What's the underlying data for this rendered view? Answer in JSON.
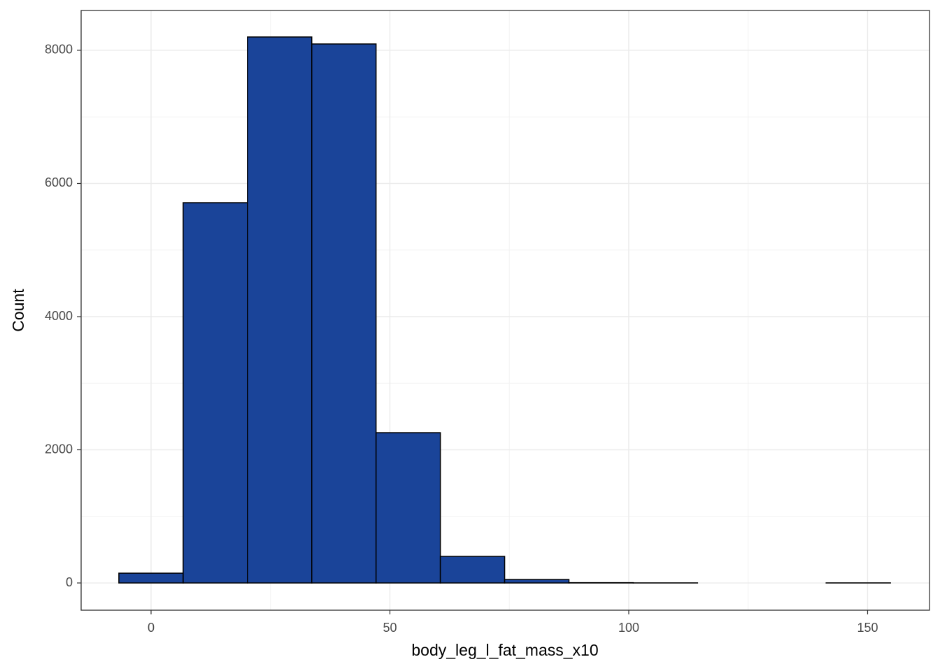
{
  "chart_data": {
    "type": "histogram",
    "x_label": "body_leg_l_fat_mass_x10",
    "y_label": "Count",
    "bins": [
      -6.74,
      6.72,
      20.18,
      33.64,
      47.1,
      60.56,
      74.02,
      87.48,
      100.94,
      114.4,
      127.86,
      141.32,
      154.78
    ],
    "counts": [
      147,
      5711,
      8200,
      8095,
      2257,
      399,
      52,
      4,
      1,
      0,
      0,
      1
    ],
    "color": "#1a4499",
    "xlim": [
      -14.64,
      162.96
    ],
    "ylim": [
      -409,
      8598
    ],
    "xticks": [
      0,
      50,
      100,
      150
    ],
    "yticks": [
      0,
      2000,
      4000,
      6000,
      8000
    ],
    "grid": true
  }
}
